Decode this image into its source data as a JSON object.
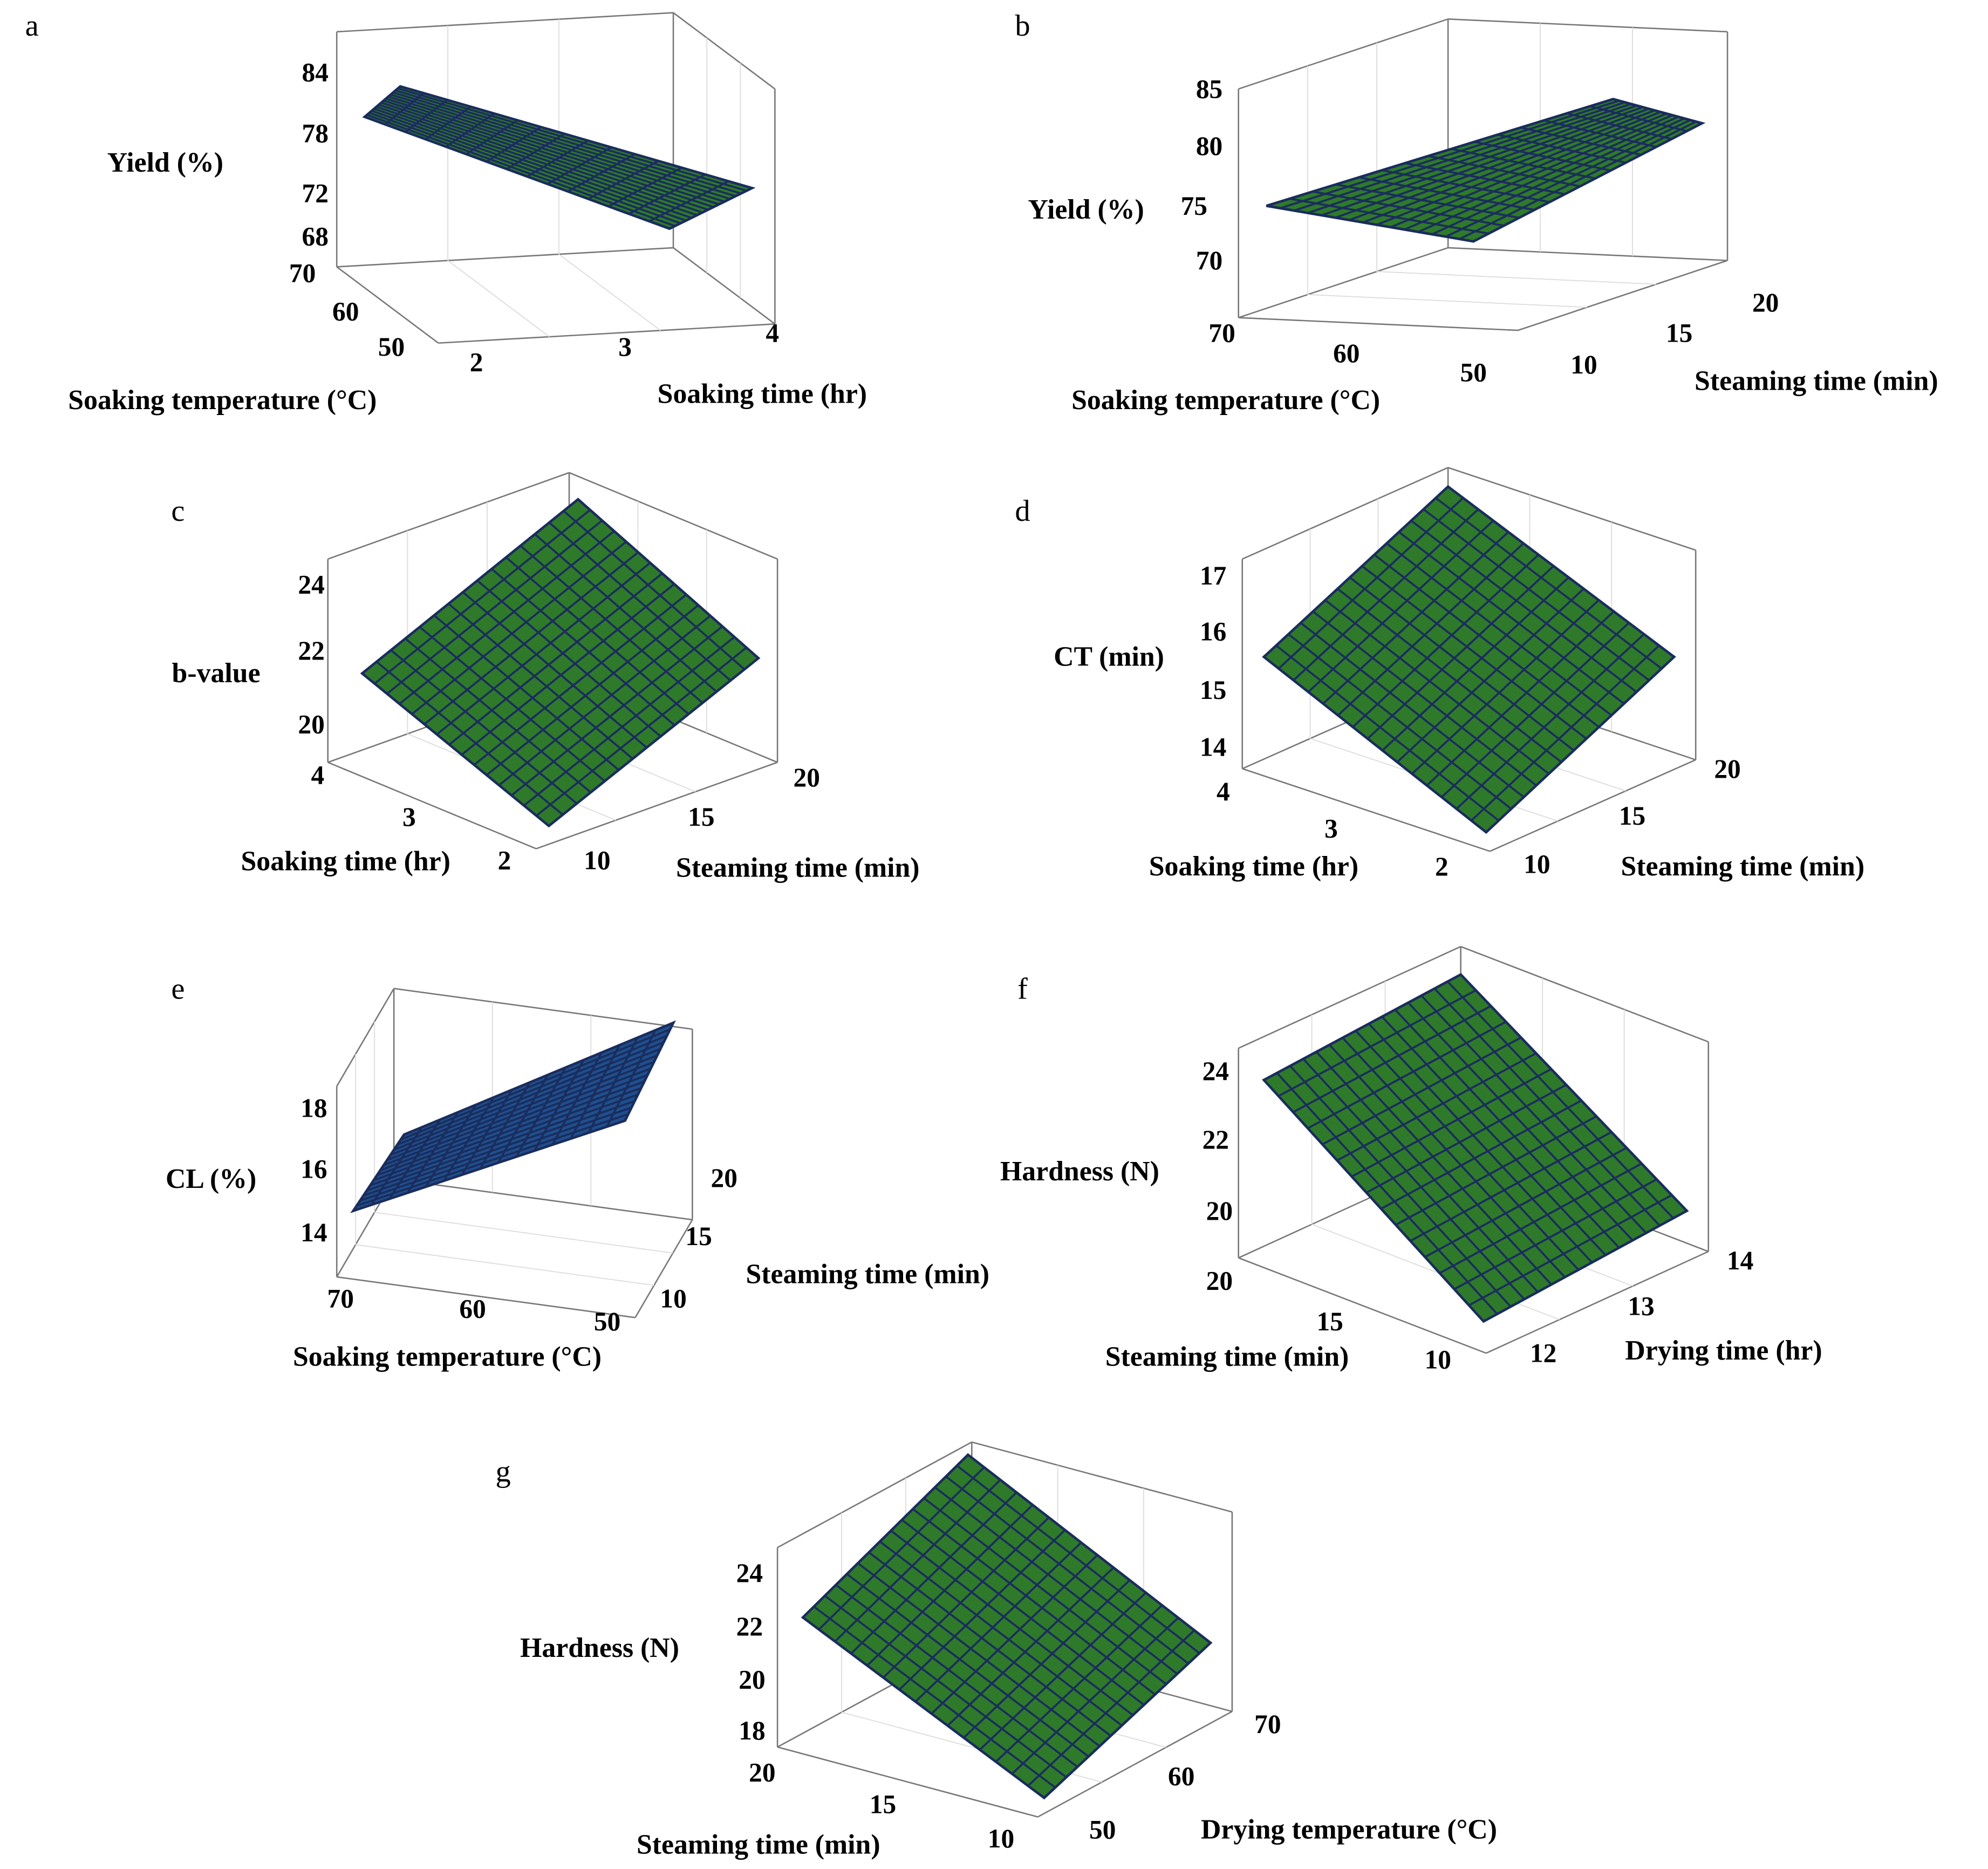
{
  "chart_data": [
    {
      "type": "surface",
      "panel": "a",
      "zlabel": "Yield (%)",
      "zticks": [
        "84",
        "78",
        "72",
        "68"
      ],
      "xlabel": "Soaking temperature (°C)",
      "xticks": [
        "70",
        "60",
        "50"
      ],
      "ylabel": "Soaking time (hr)",
      "yticks": [
        "2",
        "3",
        "4"
      ],
      "surface_color": "#2f7a2a"
    },
    {
      "type": "surface",
      "panel": "b",
      "zlabel": "Yield (%)",
      "zticks": [
        "85",
        "80",
        "75",
        "70"
      ],
      "xlabel": "Soaking temperature (°C)",
      "xticks": [
        "70",
        "60",
        "50"
      ],
      "ylabel": "Steaming time (min)",
      "yticks": [
        "10",
        "15",
        "20"
      ],
      "surface_color": "#2f7a2a"
    },
    {
      "type": "surface",
      "panel": "c",
      "zlabel": "b-value",
      "zticks": [
        "24",
        "22",
        "20"
      ],
      "xlabel": "Soaking time (hr)",
      "xticks": [
        "4",
        "3",
        "2"
      ],
      "ylabel": "Steaming time (min)",
      "yticks": [
        "10",
        "15",
        "20"
      ],
      "surface_color": "#2f7a2a"
    },
    {
      "type": "surface",
      "panel": "d",
      "zlabel": "CT (min)",
      "zticks": [
        "17",
        "16",
        "15",
        "14"
      ],
      "xlabel": "Soaking time (hr)",
      "xticks": [
        "4",
        "3",
        "2"
      ],
      "ylabel": "Steaming time (min)",
      "yticks": [
        "10",
        "15",
        "20"
      ],
      "surface_color": "#2f7a2a"
    },
    {
      "type": "surface",
      "panel": "e",
      "zlabel": "CL (%)",
      "zticks": [
        "18",
        "16",
        "14"
      ],
      "xlabel": "Soaking temperature (°C)",
      "xticks": [
        "70",
        "60",
        "50"
      ],
      "ylabel": "Steaming time (min)",
      "yticks": [
        "10",
        "15",
        "20"
      ],
      "surface_color": "#1f4f8f"
    },
    {
      "type": "surface",
      "panel": "f",
      "zlabel": "Hardness (N)",
      "zticks": [
        "24",
        "22",
        "20"
      ],
      "xlabel": "Steaming time (min)",
      "xticks": [
        "20",
        "15",
        "10"
      ],
      "ylabel": "Drying time (hr)",
      "yticks": [
        "12",
        "13",
        "14"
      ],
      "surface_color": "#2f7a2a"
    },
    {
      "type": "surface",
      "panel": "g",
      "zlabel": "Hardness (N)",
      "zticks": [
        "24",
        "22",
        "20",
        "18"
      ],
      "xlabel": "Steaming time (min)",
      "xticks": [
        "20",
        "15",
        "10"
      ],
      "ylabel": "Drying temperature (°C)",
      "yticks": [
        "50",
        "60",
        "70"
      ],
      "surface_color": "#2f7a2a"
    }
  ]
}
